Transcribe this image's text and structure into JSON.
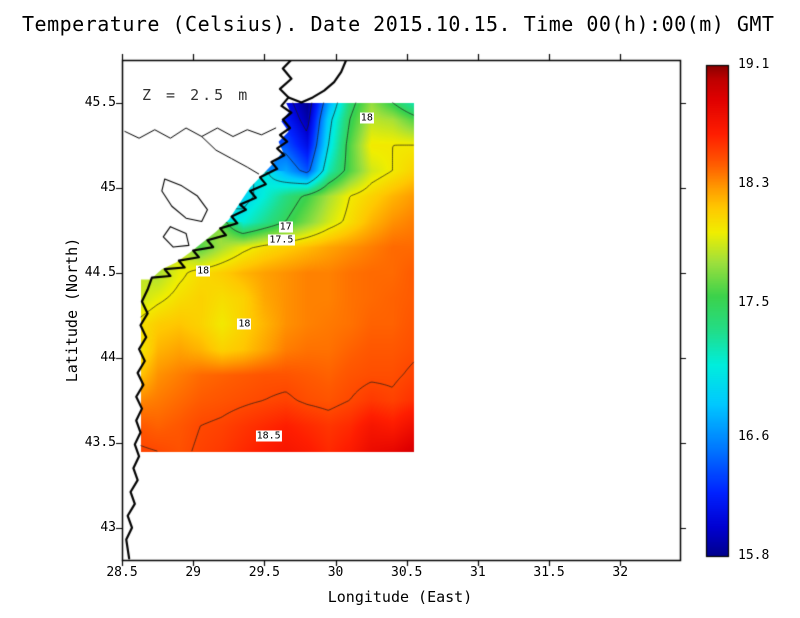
{
  "title": "Temperature (Celsius). Date 2015.10.15. Time 00(h):00(m) GMT",
  "annotation": "Z = 2.5 m",
  "axes": {
    "x_label": "Longitude (East)",
    "y_label": "Latitude (North)",
    "x_ticks": [
      "28.5",
      "29",
      "29.5",
      "30",
      "30.5",
      "31",
      "31.5",
      "32"
    ],
    "y_ticks": [
      "45.5",
      "45",
      "44.5",
      "44",
      "43.5",
      "43"
    ]
  },
  "colorbar": {
    "labels": [
      "19.1",
      "18.3",
      "17.5",
      "16.6",
      "15.8"
    ],
    "min": 15.8,
    "max": 19.1
  },
  "chart_data": {
    "type": "heatmap",
    "title": "Temperature (Celsius). Date 2015.10.15. Time 00(h):00(m) GMT",
    "variable": "Temperature",
    "units": "Celsius",
    "date": "2015.10.15",
    "time": "00(h):00(m) GMT",
    "depth_annotation": "Z = 2.5 m",
    "xlabel": "Longitude (East)",
    "ylabel": "Latitude (North)",
    "xlim": [
      28.5,
      32.42
    ],
    "ylim": [
      42.81,
      45.75
    ],
    "grid": false,
    "legend_position": "colorbar-right",
    "colorbar_range": [
      15.8,
      19.1
    ],
    "extent": {
      "lon": [
        28.63,
        30.55
      ],
      "lat": [
        43.45,
        45.5
      ]
    },
    "lons": [
      28.6,
      28.75,
      28.9,
      29.05,
      29.2,
      29.35,
      29.5,
      29.65,
      29.8,
      29.95,
      30.1,
      30.25,
      30.4,
      30.55
    ],
    "lats": [
      43.45,
      43.6,
      43.75,
      43.9,
      44.05,
      44.2,
      44.35,
      44.5,
      44.65,
      44.8,
      44.95,
      45.1,
      45.25,
      45.4,
      45.5
    ],
    "values": [
      [
        18.52,
        18.5,
        18.47,
        18.52,
        18.55,
        18.6,
        18.65,
        18.7,
        18.66,
        18.6,
        18.66,
        18.78,
        18.82,
        18.92
      ],
      [
        18.45,
        18.42,
        18.45,
        18.5,
        18.52,
        18.56,
        18.6,
        18.64,
        18.6,
        18.56,
        18.6,
        18.7,
        18.66,
        18.76
      ],
      [
        18.32,
        18.36,
        18.4,
        18.44,
        18.46,
        18.48,
        18.5,
        18.52,
        18.48,
        18.46,
        18.5,
        18.55,
        18.52,
        18.58
      ],
      [
        18.12,
        18.3,
        18.35,
        18.4,
        18.42,
        18.44,
        18.46,
        18.46,
        18.44,
        18.42,
        18.46,
        18.48,
        18.48,
        18.52
      ],
      [
        17.96,
        18.2,
        18.25,
        18.2,
        18.1,
        18.15,
        18.25,
        18.35,
        18.38,
        18.38,
        18.42,
        18.45,
        18.45,
        18.48
      ],
      [
        18.02,
        18.12,
        18.15,
        18.1,
        18.0,
        18.1,
        18.2,
        18.3,
        18.34,
        18.36,
        18.38,
        18.42,
        18.42,
        18.46
      ],
      [
        17.86,
        17.96,
        18.05,
        18.1,
        18.05,
        18.1,
        18.24,
        18.3,
        18.34,
        18.34,
        18.38,
        18.4,
        18.42,
        18.44
      ],
      [
        null,
        17.8,
        17.96,
        18.06,
        18.12,
        18.2,
        18.26,
        18.3,
        18.34,
        18.34,
        18.38,
        18.4,
        18.4,
        18.44
      ],
      [
        null,
        null,
        null,
        17.6,
        17.8,
        17.95,
        18.05,
        18.12,
        18.18,
        18.25,
        18.3,
        18.35,
        18.4,
        18.4
      ],
      [
        null,
        null,
        null,
        null,
        null,
        17.1,
        17.3,
        17.5,
        17.7,
        17.9,
        18.05,
        18.2,
        18.3,
        18.35
      ],
      [
        null,
        null,
        null,
        null,
        null,
        16.9,
        17.1,
        17.35,
        17.55,
        17.8,
        18.0,
        18.1,
        18.2,
        18.28
      ],
      [
        null,
        null,
        null,
        null,
        null,
        null,
        null,
        16.7,
        16.4,
        17.2,
        17.6,
        17.9,
        18.0,
        18.1
      ],
      [
        null,
        null,
        null,
        null,
        null,
        null,
        null,
        16.4,
        16.1,
        17.0,
        17.6,
        18.0,
        18.0,
        18.0
      ],
      [
        null,
        null,
        null,
        null,
        null,
        null,
        null,
        16.2,
        15.9,
        16.9,
        17.5,
        17.85,
        17.8,
        17.6
      ],
      [
        null,
        null,
        null,
        null,
        null,
        null,
        null,
        16.1,
        15.8,
        16.7,
        17.4,
        17.75,
        17.5,
        17.2
      ]
    ],
    "contour_levels": [
      16,
      16.5,
      17,
      17.5,
      18,
      18.5
    ],
    "contour_labels": [
      {
        "text": "18",
        "lon": 30.22,
        "lat": 45.41
      },
      {
        "text": "17",
        "lon": 29.65,
        "lat": 44.77
      },
      {
        "text": "17.5",
        "lon": 29.62,
        "lat": 44.69
      },
      {
        "text": "18",
        "lon": 29.07,
        "lat": 44.51
      },
      {
        "text": "18",
        "lon": 29.36,
        "lat": 44.2
      },
      {
        "text": "18.5",
        "lon": 29.53,
        "lat": 43.54
      }
    ],
    "colormap": [
      {
        "t": 0.0,
        "c": "#00008c"
      },
      {
        "t": 0.06,
        "c": "#0000d2"
      },
      {
        "t": 0.13,
        "c": "#0022ff"
      },
      {
        "t": 0.22,
        "c": "#0078ff"
      },
      {
        "t": 0.31,
        "c": "#00c8ff"
      },
      {
        "t": 0.39,
        "c": "#00eedd"
      },
      {
        "t": 0.46,
        "c": "#22dd88"
      },
      {
        "t": 0.53,
        "c": "#3cd24b"
      },
      {
        "t": 0.6,
        "c": "#a0e03c"
      },
      {
        "t": 0.66,
        "c": "#f0ee00"
      },
      {
        "t": 0.71,
        "c": "#ffc800"
      },
      {
        "t": 0.75,
        "c": "#ff9b00"
      },
      {
        "t": 0.8,
        "c": "#ff5a00"
      },
      {
        "t": 0.86,
        "c": "#ff1e00"
      },
      {
        "t": 0.93,
        "c": "#e00000"
      },
      {
        "t": 0.97,
        "c": "#c00000"
      },
      {
        "t": 1.0,
        "c": "#8a0000"
      }
    ],
    "land_polygon": [
      [
        28.58,
        44.46
      ],
      [
        28.7,
        44.46
      ],
      [
        28.78,
        44.52
      ],
      [
        28.88,
        44.56
      ],
      [
        28.98,
        44.62
      ],
      [
        29.07,
        44.68
      ],
      [
        29.16,
        44.74
      ],
      [
        29.25,
        44.81
      ],
      [
        29.32,
        44.9
      ],
      [
        29.4,
        45.0
      ],
      [
        29.48,
        45.07
      ],
      [
        29.56,
        45.14
      ],
      [
        29.63,
        45.21
      ],
      [
        29.6,
        45.27
      ],
      [
        29.67,
        45.33
      ],
      [
        29.62,
        45.39
      ],
      [
        29.68,
        45.45
      ],
      [
        29.64,
        45.52
      ],
      [
        28.58,
        45.52
      ]
    ],
    "coastlines": [
      {
        "name": "coast-main",
        "width": 2.2,
        "points": [
          [
            29.7,
            45.76
          ],
          [
            29.63,
            45.7
          ],
          [
            29.69,
            45.64
          ],
          [
            29.61,
            45.58
          ],
          [
            29.67,
            45.53
          ],
          [
            29.62,
            45.48
          ],
          [
            29.69,
            45.44
          ],
          [
            29.63,
            45.4
          ],
          [
            29.68,
            45.35
          ],
          [
            29.61,
            45.31
          ],
          [
            29.66,
            45.27
          ],
          [
            29.59,
            45.23
          ],
          [
            29.64,
            45.19
          ],
          [
            29.55,
            45.15
          ],
          [
            29.59,
            45.11
          ],
          [
            29.47,
            45.06
          ],
          [
            29.51,
            45.02
          ],
          [
            29.4,
            44.98
          ],
          [
            29.44,
            44.94
          ],
          [
            29.33,
            44.9
          ],
          [
            29.37,
            44.87
          ],
          [
            29.27,
            44.83
          ],
          [
            29.31,
            44.79
          ],
          [
            29.19,
            44.76
          ],
          [
            29.23,
            44.72
          ],
          [
            29.1,
            44.69
          ],
          [
            29.14,
            44.65
          ],
          [
            29.0,
            44.63
          ],
          [
            29.04,
            44.59
          ],
          [
            28.9,
            44.57
          ],
          [
            28.94,
            44.53
          ],
          [
            28.8,
            44.52
          ],
          [
            28.84,
            44.48
          ],
          [
            28.71,
            44.47
          ],
          [
            28.68,
            44.4
          ],
          [
            28.64,
            44.33
          ],
          [
            28.68,
            44.26
          ],
          [
            28.63,
            44.19
          ],
          [
            28.67,
            44.12
          ],
          [
            28.62,
            44.05
          ],
          [
            28.66,
            43.98
          ],
          [
            28.61,
            43.91
          ],
          [
            28.65,
            43.84
          ],
          [
            28.6,
            43.77
          ],
          [
            28.64,
            43.7
          ],
          [
            28.6,
            43.63
          ],
          [
            28.63,
            43.56
          ],
          [
            28.59,
            43.49
          ],
          [
            28.62,
            43.42
          ],
          [
            28.58,
            43.35
          ],
          [
            28.61,
            43.28
          ],
          [
            28.56,
            43.21
          ],
          [
            28.59,
            43.14
          ],
          [
            28.54,
            43.07
          ],
          [
            28.57,
            43.0
          ],
          [
            28.53,
            42.93
          ],
          [
            28.55,
            42.82
          ]
        ]
      },
      {
        "name": "coast-delta-north",
        "width": 2.2,
        "points": [
          [
            29.67,
            45.53
          ],
          [
            29.76,
            45.5
          ],
          [
            29.84,
            45.53
          ],
          [
            29.92,
            45.57
          ],
          [
            29.99,
            45.62
          ],
          [
            30.04,
            45.68
          ],
          [
            30.08,
            45.76
          ]
        ]
      },
      {
        "name": "danube-river",
        "width": 1.0,
        "points": [
          [
            28.52,
            45.33
          ],
          [
            28.62,
            45.29
          ],
          [
            28.73,
            45.34
          ],
          [
            28.84,
            45.29
          ],
          [
            28.95,
            45.35
          ],
          [
            29.06,
            45.3
          ],
          [
            29.17,
            45.35
          ],
          [
            29.28,
            45.3
          ],
          [
            29.38,
            45.34
          ],
          [
            29.48,
            45.31
          ],
          [
            29.58,
            45.35
          ]
        ]
      },
      {
        "name": "danube-branch",
        "width": 1.0,
        "points": [
          [
            29.06,
            45.3
          ],
          [
            29.16,
            45.22
          ],
          [
            29.27,
            45.17
          ],
          [
            29.38,
            45.12
          ],
          [
            29.46,
            45.08
          ]
        ]
      },
      {
        "name": "lake-razim",
        "width": 1.1,
        "points": [
          [
            28.8,
            45.05
          ],
          [
            28.92,
            45.01
          ],
          [
            29.03,
            44.95
          ],
          [
            29.1,
            44.87
          ],
          [
            29.06,
            44.8
          ],
          [
            28.95,
            44.82
          ],
          [
            28.85,
            44.89
          ],
          [
            28.78,
            44.98
          ],
          [
            28.8,
            45.05
          ]
        ]
      },
      {
        "name": "lake-south",
        "width": 1.1,
        "points": [
          [
            28.84,
            44.77
          ],
          [
            28.95,
            44.73
          ],
          [
            28.97,
            44.66
          ],
          [
            28.86,
            44.65
          ],
          [
            28.79,
            44.71
          ],
          [
            28.84,
            44.77
          ]
        ]
      }
    ]
  }
}
